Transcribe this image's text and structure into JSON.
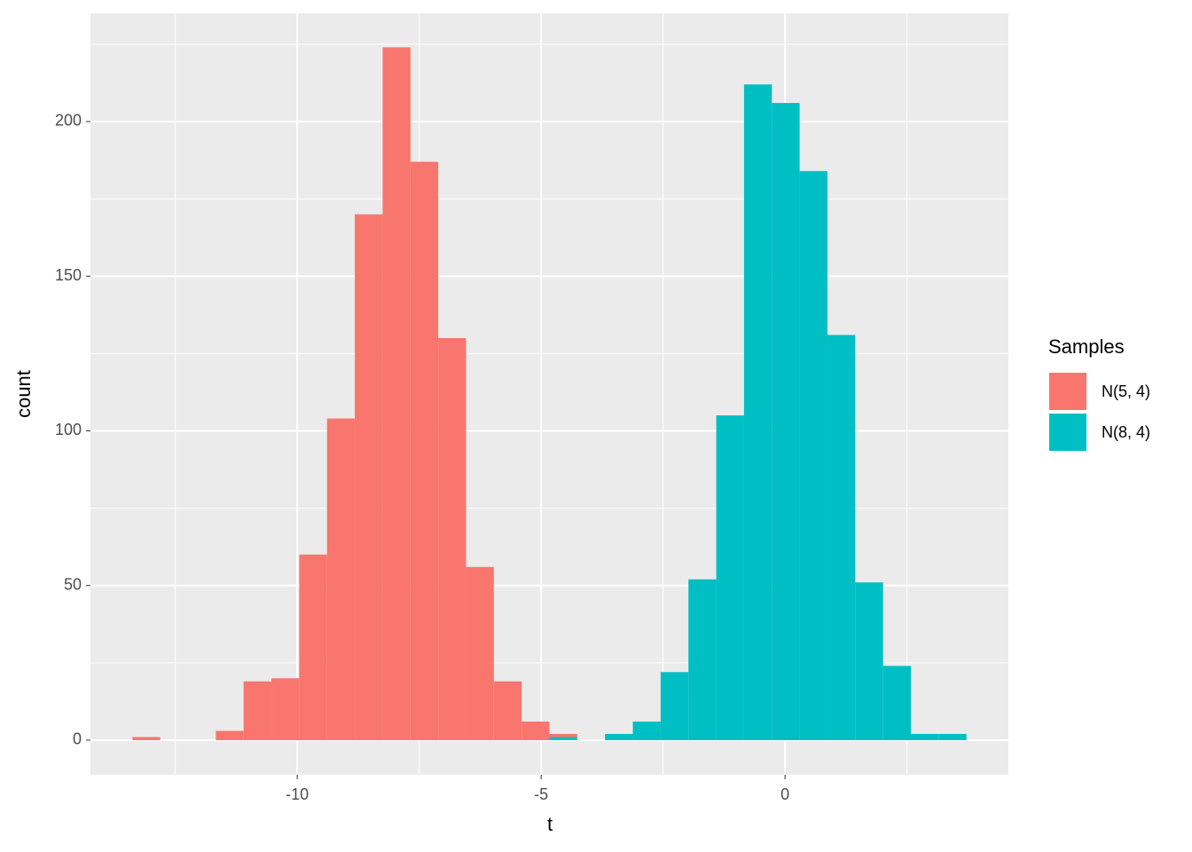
{
  "chart_data": {
    "type": "histogram",
    "x_label": "t",
    "y_label": "count",
    "legend_title": "Samples",
    "bins": [
      -13.38,
      -12.81,
      -12.24,
      -11.67,
      -11.1,
      -10.53,
      -9.96,
      -9.39,
      -8.82,
      -8.25,
      -7.68,
      -7.11,
      -6.54,
      -5.97,
      -5.4,
      -4.83,
      -4.26,
      -3.69,
      -3.12,
      -2.55,
      -1.98,
      -1.41,
      -0.84,
      -0.27,
      0.3,
      0.87,
      1.44,
      2.01,
      2.58,
      3.15,
      3.72
    ],
    "series": [
      {
        "name": "N(5, 4)",
        "color": "#f8766d",
        "values": [
          1,
          0,
          0,
          3,
          19,
          20,
          60,
          104,
          170,
          224,
          187,
          130,
          56,
          19,
          6,
          1,
          0,
          0,
          0,
          0,
          0,
          0,
          0,
          0,
          0,
          0,
          0,
          0,
          0,
          0
        ]
      },
      {
        "name": "N(8, 4)",
        "color": "#00bfc4",
        "values": [
          0,
          0,
          0,
          0,
          0,
          0,
          0,
          0,
          0,
          0,
          0,
          0,
          0,
          0,
          0,
          1,
          0,
          2,
          6,
          22,
          52,
          105,
          212,
          206,
          184,
          131,
          51,
          24,
          2,
          2
        ]
      }
    ],
    "stacked": true,
    "xlim": [
      -14.24,
      4.58
    ],
    "xticks": [
      -10,
      -5,
      0
    ],
    "ylim": [
      -11.2,
      235
    ],
    "yticks": [
      0,
      50,
      100,
      150,
      200
    ],
    "grid": true,
    "legend_position": "right"
  }
}
